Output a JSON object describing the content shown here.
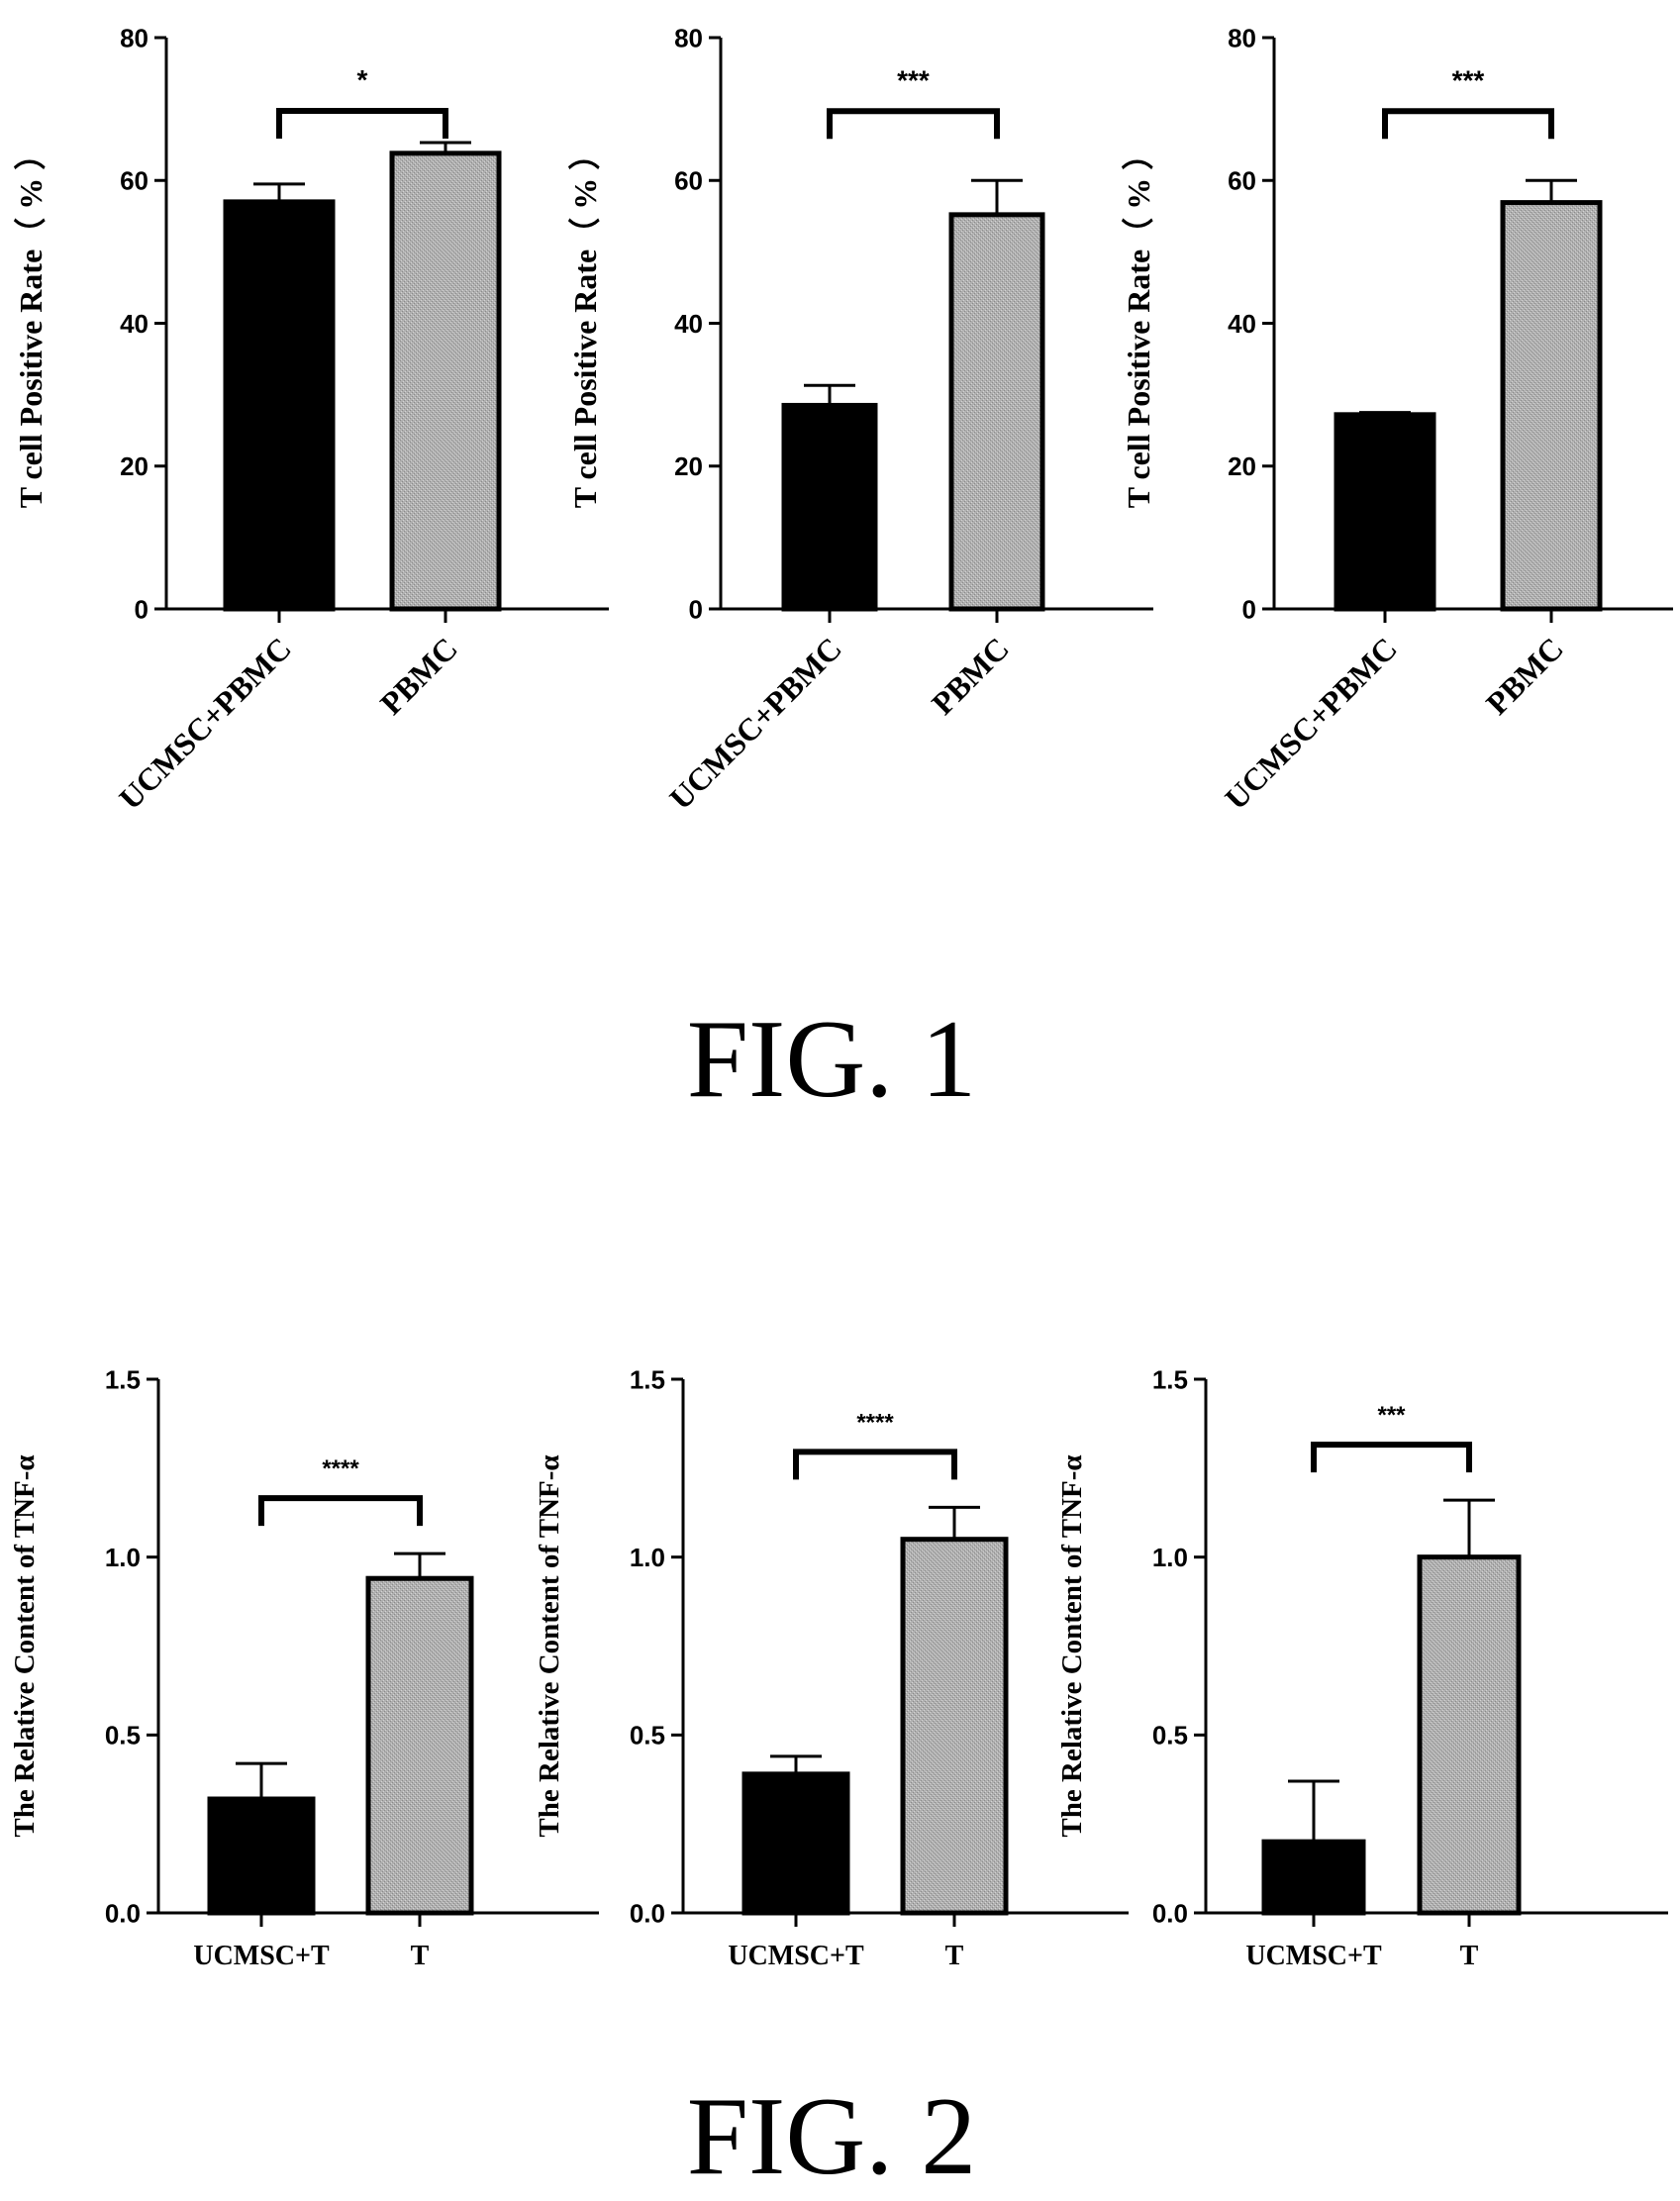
{
  "figures": [
    {
      "caption": "FIG. 1"
    },
    {
      "caption": "FIG. 2"
    }
  ],
  "colors": {
    "bar_primary": "#000000",
    "bar_secondary": "#a8a8a8",
    "bar_outline": "#000000",
    "text": "#000000"
  },
  "chart_data": [
    {
      "type": "bar",
      "figure": "FIG. 1",
      "title": "",
      "xlabel": "",
      "ylabel": "T cell Positive Rate（ % ）",
      "categories": [
        "UCMSC+PBMC",
        "PBMC"
      ],
      "values": [
        57,
        63.8
      ],
      "error": [
        2.5,
        1.5
      ],
      "ylim": [
        0,
        80
      ],
      "yticks": [
        "0",
        "20",
        "40",
        "60",
        "80"
      ],
      "significance": "*",
      "grid": false
    },
    {
      "type": "bar",
      "figure": "FIG. 1",
      "title": "",
      "xlabel": "",
      "ylabel": "T cell Positive Rate（ % ）",
      "categories": [
        "UCMSC+PBMC",
        "PBMC"
      ],
      "values": [
        28.5,
        55.2
      ],
      "error": [
        2.8,
        4.8
      ],
      "ylim": [
        0,
        80
      ],
      "yticks": [
        "0",
        "20",
        "40",
        "60",
        "80"
      ],
      "significance": "***",
      "grid": false
    },
    {
      "type": "bar",
      "figure": "FIG. 1",
      "title": "",
      "xlabel": "",
      "ylabel": "T cell Positive Rate（ % ）",
      "categories": [
        "UCMSC+PBMC",
        "PBMC"
      ],
      "values": [
        27.2,
        56.9
      ],
      "error": [
        0.3,
        3.1
      ],
      "ylim": [
        0,
        80
      ],
      "yticks": [
        "0",
        "20",
        "40",
        "60",
        "80"
      ],
      "significance": "***",
      "grid": false
    },
    {
      "type": "bar",
      "figure": "FIG. 2",
      "title": "",
      "xlabel": "",
      "ylabel": "The Relative Content of TNF-α",
      "categories": [
        "UCMSC+T",
        "T"
      ],
      "values": [
        0.32,
        0.94
      ],
      "error": [
        0.1,
        0.07
      ],
      "ylim": [
        0,
        1.5
      ],
      "yticks": [
        "0.0",
        "0.5",
        "1.0",
        "1.5"
      ],
      "significance": "****",
      "grid": false
    },
    {
      "type": "bar",
      "figure": "FIG. 2",
      "title": "",
      "xlabel": "",
      "ylabel": "The Relative Content of TNF-α",
      "categories": [
        "UCMSC+T",
        "T"
      ],
      "values": [
        0.39,
        1.05
      ],
      "error": [
        0.05,
        0.09
      ],
      "ylim": [
        0,
        1.5
      ],
      "yticks": [
        "0.0",
        "0.5",
        "1.0",
        "1.5"
      ],
      "significance": "****",
      "grid": false
    },
    {
      "type": "bar",
      "figure": "FIG. 2",
      "title": "",
      "xlabel": "",
      "ylabel": "The Relative Content of TNF-α",
      "categories": [
        "UCMSC+T",
        "T"
      ],
      "values": [
        0.2,
        1.0
      ],
      "error": [
        0.17,
        0.16
      ],
      "ylim": [
        0,
        1.5
      ],
      "yticks": [
        "0.0",
        "0.5",
        "1.0",
        "1.5"
      ],
      "significance": "***",
      "grid": false
    }
  ]
}
